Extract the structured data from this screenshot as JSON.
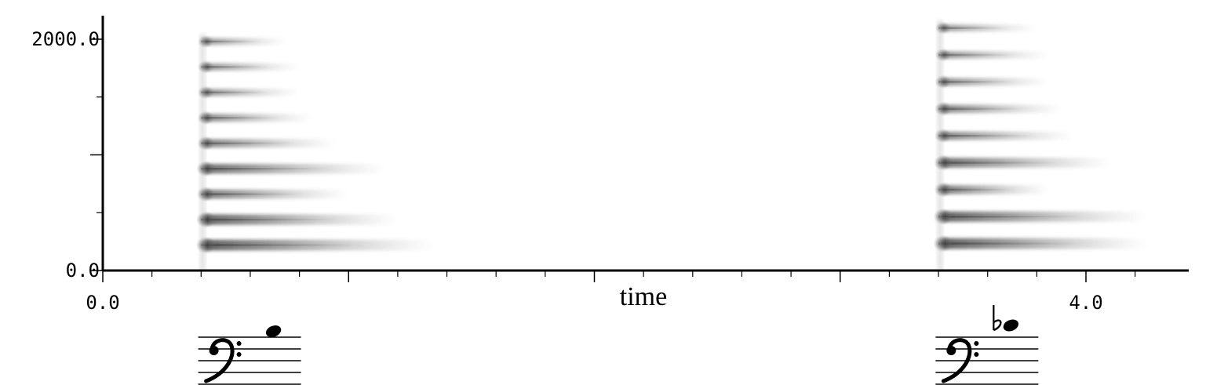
{
  "chart_data": {
    "type": "heatmap",
    "title": "",
    "xlabel": "time",
    "ylabel": "",
    "xlim": [
      0,
      4.4
    ],
    "ylim": [
      0,
      2000
    ],
    "x_tick_labels": [
      {
        "value": 0,
        "label": "0.0"
      },
      {
        "value": 4,
        "label": "4.0"
      }
    ],
    "y_tick_labels": [
      {
        "value": 0,
        "label": "0.0"
      },
      {
        "value": 2000,
        "label": "2000.0"
      }
    ],
    "x_major_ticks": [
      0,
      1,
      2,
      3,
      4
    ],
    "x_minor_ticks": [
      0.2,
      0.4,
      0.6,
      0.8,
      1.2,
      1.4,
      1.6,
      1.8,
      2.2,
      2.4,
      2.6,
      2.8,
      3.2,
      3.4,
      3.6,
      3.8,
      4.2
    ],
    "y_major_ticks": [
      0,
      1000,
      2000
    ],
    "y_minor_ticks": [
      500,
      1500
    ],
    "grid": false,
    "colors": {
      "ink": "#000000",
      "energy": "#555555",
      "background": "#ffffff"
    },
    "notes": [
      {
        "name": "note-1",
        "onset": 0.4,
        "fundamental_hz": 220,
        "harmonics": [
          {
            "freq": 220,
            "end": 1.35,
            "intensity": 0.95
          },
          {
            "freq": 440,
            "end": 1.2,
            "intensity": 0.9
          },
          {
            "freq": 660,
            "end": 1.0,
            "intensity": 0.7
          },
          {
            "freq": 880,
            "end": 1.15,
            "intensity": 0.8
          },
          {
            "freq": 1100,
            "end": 0.95,
            "intensity": 0.6
          },
          {
            "freq": 1320,
            "end": 0.85,
            "intensity": 0.55
          },
          {
            "freq": 1540,
            "end": 0.8,
            "intensity": 0.45
          },
          {
            "freq": 1760,
            "end": 0.8,
            "intensity": 0.45
          },
          {
            "freq": 1980,
            "end": 0.75,
            "intensity": 0.4
          }
        ]
      },
      {
        "name": "note-2",
        "onset": 3.4,
        "fundamental_hz": 233,
        "harmonics": [
          {
            "freq": 233,
            "end": 4.25,
            "intensity": 0.95
          },
          {
            "freq": 466,
            "end": 4.25,
            "intensity": 0.9
          },
          {
            "freq": 699,
            "end": 3.85,
            "intensity": 0.7
          },
          {
            "freq": 932,
            "end": 4.1,
            "intensity": 0.8
          },
          {
            "freq": 1165,
            "end": 3.95,
            "intensity": 0.6
          },
          {
            "freq": 1398,
            "end": 3.9,
            "intensity": 0.6
          },
          {
            "freq": 1631,
            "end": 3.85,
            "intensity": 0.5
          },
          {
            "freq": 1864,
            "end": 3.85,
            "intensity": 0.45
          },
          {
            "freq": 2097,
            "end": 3.8,
            "intensity": 0.4
          }
        ]
      }
    ],
    "notation": [
      {
        "name": "bass-staff-note-1",
        "center_time": 0.8,
        "pitch_steps_above_top_line": 1,
        "accidental": ""
      },
      {
        "name": "bass-staff-note-2",
        "center_time": 3.8,
        "pitch_steps_above_top_line": 2,
        "accidental": "flat"
      }
    ]
  }
}
